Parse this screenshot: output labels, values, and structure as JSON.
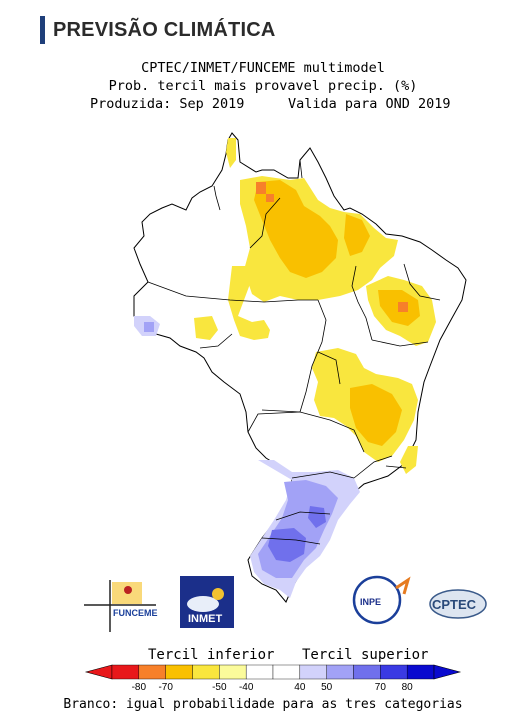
{
  "header": {
    "title": "PREVISÃO CLIMÁTICA"
  },
  "chart_titles": {
    "line1": "CPTEC/INMET/FUNCEME multimodel",
    "line2": "Prob. tercil mais provavel precip. (%)",
    "produced": "Produzida: Sep 2019",
    "valid": "Valida para OND 2019"
  },
  "chart_data": {
    "type": "heatmap",
    "variable": "Probabilidade do tercil mais provável de precipitação (%)",
    "produced": "Sep 2019",
    "valid_period": "OND 2019",
    "regions": [
      {
        "area": "Norte (Amapá/Pará/Amazonas leste)",
        "tercile": "inferior",
        "probability_range": [
          40,
          50
        ]
      },
      {
        "area": "Pará nordeste (núcleo)",
        "tercile": "inferior",
        "probability_range": [
          60,
          70
        ]
      },
      {
        "area": "Maranhão / Piauí",
        "tercile": "inferior",
        "probability_range": [
          40,
          50
        ]
      },
      {
        "area": "Pernambuco / Paraíba interior (núcleo)",
        "tercile": "inferior",
        "probability_range": [
          60,
          70
        ]
      },
      {
        "area": "Mato Grosso centro",
        "tercile": "inferior",
        "probability_range": [
          40,
          50
        ]
      },
      {
        "area": "Goiás / Tocantins sul",
        "tercile": "inferior",
        "probability_range": [
          40,
          50
        ]
      },
      {
        "area": "Minas Gerais / Bahia sul / Espírito Santo",
        "tercile": "inferior",
        "probability_range": [
          40,
          50
        ]
      },
      {
        "area": "Acre / Rondônia oeste",
        "tercile": "superior",
        "probability_range": [
          40,
          50
        ]
      },
      {
        "area": "Paraná / Santa Catarina",
        "tercile": "superior",
        "probability_range": [
          40,
          60
        ]
      },
      {
        "area": "Rio Grande do Sul",
        "tercile": "superior",
        "probability_range": [
          50,
          70
        ]
      }
    ],
    "legend": {
      "low_title": "Tercil inferior",
      "high_title": "Tercil superior",
      "ticks": [
        "-80",
        "-70",
        "-50",
        "-40",
        "40",
        "50",
        "70",
        "80"
      ],
      "colors": [
        "#e8181b",
        "#f7802a",
        "#f9c000",
        "#f9e63e",
        "#fbfb9b",
        "#ffffff",
        "#ffffff",
        "#d2d2fb",
        "#a2a2f6",
        "#7070ec",
        "#3a3ae3",
        "#0a0acf"
      ],
      "note": "Branco: igual probabilidade para as tres categorias"
    }
  },
  "logos": {
    "funceme": "FUNCEME",
    "inmet": "INMET",
    "inpe": "INPE",
    "cptec": "CPTEC"
  },
  "colors": {
    "header_bar": "#1f3f7a",
    "low_40": "#f9e63e",
    "low_50": "#f9c000",
    "low_60": "#f7802a",
    "high_40": "#d2d2fb",
    "high_50": "#a2a2f6",
    "high_60": "#7070ec"
  }
}
